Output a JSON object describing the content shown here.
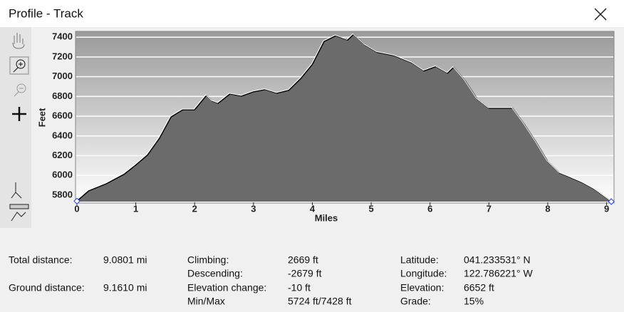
{
  "window_title": "Profile - Track",
  "chart_data": {
    "type": "area",
    "x_label": "Miles",
    "y_label": "Feet",
    "x": [
      0,
      0.2,
      0.5,
      0.8,
      1.0,
      1.2,
      1.4,
      1.6,
      1.8,
      2.0,
      2.2,
      2.3,
      2.4,
      2.6,
      2.8,
      3.0,
      3.2,
      3.4,
      3.6,
      3.8,
      4.0,
      4.2,
      4.4,
      4.6,
      4.7,
      4.9,
      5.1,
      5.4,
      5.7,
      5.9,
      6.1,
      6.3,
      6.4,
      6.6,
      6.8,
      7.0,
      7.4,
      7.6,
      7.8,
      8.0,
      8.2,
      8.4,
      8.6,
      8.8,
      9.0,
      9.08
    ],
    "y": [
      5740,
      5844,
      5916,
      6011,
      6105,
      6207,
      6375,
      6593,
      6665,
      6665,
      6810,
      6753,
      6731,
      6825,
      6804,
      6847,
      6869,
      6833,
      6862,
      6978,
      7124,
      7356,
      7415,
      7371,
      7428,
      7320,
      7247,
      7211,
      7138,
      7058,
      7102,
      7036,
      7095,
      6956,
      6775,
      6680,
      6680,
      6520,
      6338,
      6142,
      6025,
      5975,
      5924,
      5858,
      5771,
      5735
    ],
    "fill_color": "#6b6b6b",
    "line_color": "#000000",
    "grid": true,
    "xlim": [
      0,
      9.09
    ],
    "ylim": [
      5735,
      7445
    ],
    "xticks": [
      0,
      1,
      2,
      3,
      4,
      5,
      6,
      7,
      8,
      9
    ],
    "yticks": [
      5800,
      6000,
      6200,
      6400,
      6600,
      6800,
      7000,
      7200,
      7400
    ]
  },
  "stats": [
    {
      "label": "Total distance:",
      "value": "9.0801 mi"
    },
    {
      "label": "Ground distance:",
      "value": "9.1610 mi"
    },
    {
      "label": "Climbing:",
      "value": "2669 ft"
    },
    {
      "label": "Descending:",
      "value": "-2679 ft"
    },
    {
      "label": "Elevation change:",
      "value": "-10 ft"
    },
    {
      "label": "Min/Max",
      "value": "5724 ft/7428 ft"
    },
    {
      "label": "Latitude:",
      "value": "041.233531° N"
    },
    {
      "label": "Longitude:",
      "value": "122.786221° W"
    },
    {
      "label": "Elevation:",
      "value": "6652 ft"
    },
    {
      "label": "Grade:",
      "value": "15%"
    }
  ]
}
